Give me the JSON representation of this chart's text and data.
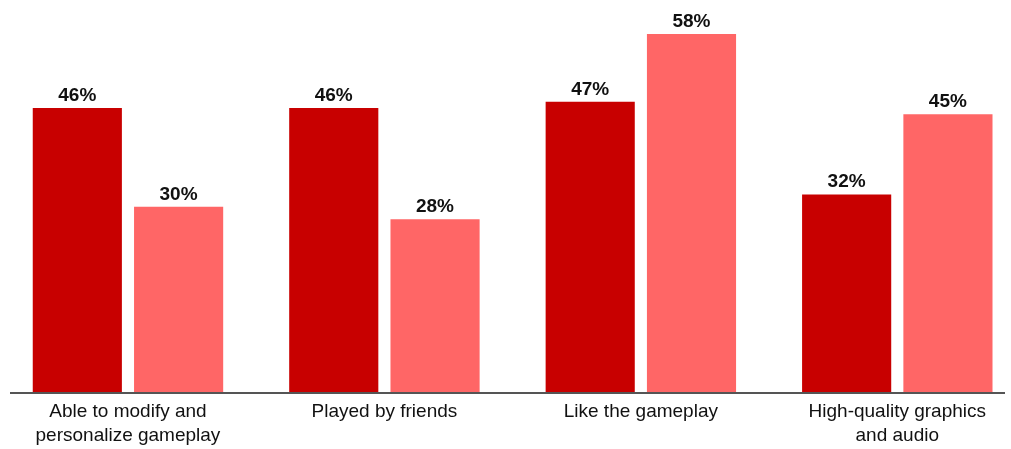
{
  "chart_data": {
    "type": "bar",
    "categories": [
      "Able to modify and\npersonalize gameplay",
      "Played by friends",
      "Like the gameplay",
      "High-quality graphics\nand audio"
    ],
    "series": [
      {
        "color": "#c80000",
        "values": [
          46,
          46,
          47,
          32
        ],
        "value_labels": [
          "46%",
          "46%",
          "47%",
          "32%"
        ]
      },
      {
        "color": "#ff6666",
        "values": [
          30,
          28,
          58,
          45
        ],
        "value_labels": [
          "30%",
          "28%",
          "58%",
          "45%"
        ]
      }
    ],
    "ylim": [
      0,
      63.5
    ],
    "grid": false,
    "tick_labels": "x"
  }
}
